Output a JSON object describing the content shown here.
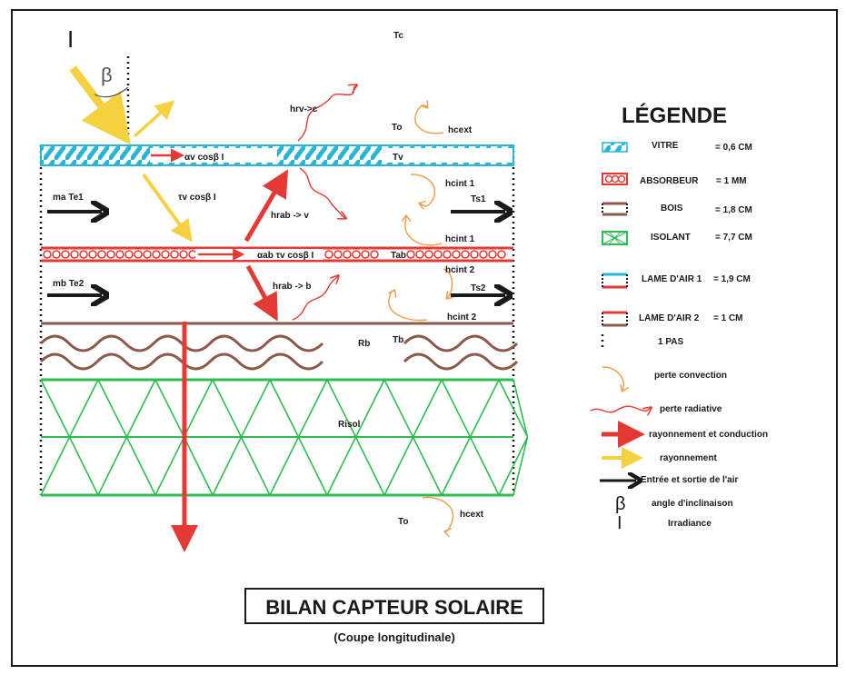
{
  "labels": {
    "irradiance_symbol": "I",
    "beta_symbol": "β",
    "Tc": "Tc",
    "To_top": "To",
    "hcext_top": "hcext",
    "hrv_c": "hrv->c",
    "alpha_v": "αv cosβ I",
    "Tv": "Tv",
    "ma_Te1": "ma Te1",
    "tau_v": "τv cosβ I",
    "hrab_v": "hrab -> v",
    "hcint1_a": "hcint 1",
    "Ts1": "Ts1",
    "hcint1_b": "hcint 1",
    "alpha_ab": "αab τv cosβ I",
    "Tab": "Tab",
    "hcint2_a": "hcint 2",
    "mb_Te2": "mb Te2",
    "hrab_b": "hrab -> b",
    "Ts2": "Ts2",
    "hcint2_b": "hcint 2",
    "Rb": "Rb",
    "Tb": "Tb",
    "Risol": "Risol",
    "To_bottom": "To",
    "hcext_bottom": "hcext"
  },
  "legend": {
    "title": "LÉGENDE",
    "items": [
      {
        "name": "VITRE",
        "value": "= 0,6 CM"
      },
      {
        "name": "ABSORBEUR",
        "value": "= 1 MM"
      },
      {
        "name": "BOIS",
        "value": "= 1,8 CM"
      },
      {
        "name": "ISOLANT",
        "value": "= 7,7 CM"
      },
      {
        "name": "LAME D'AIR 1",
        "value": "= 1,9 CM"
      },
      {
        "name": "LAME D'AIR 2",
        "value": "= 1 CM"
      },
      {
        "name": "1 PAS",
        "value": ""
      },
      {
        "name": "perte convection",
        "value": ""
      },
      {
        "name": "perte radiative",
        "value": ""
      },
      {
        "name": "rayonnement et conduction",
        "value": ""
      },
      {
        "name": "rayonnement",
        "value": ""
      },
      {
        "name": "Entrée et sortie de l'air",
        "value": ""
      },
      {
        "name": "angle d'inclinaison",
        "value": ""
      },
      {
        "name": "Irradiance",
        "value": ""
      }
    ]
  },
  "title": "BILAN CAPTEUR SOLAIRE",
  "subtitle": "(Coupe longitudinale)",
  "colors": {
    "vitre": "#29b6d6",
    "absorbeur": "#e53935",
    "bois": "#8b5a4a",
    "isolant": "#2ebd4f",
    "radiation_yellow": "#f5d142",
    "convection_orange": "#f0a050",
    "air_arrow": "#1a1a1a"
  }
}
